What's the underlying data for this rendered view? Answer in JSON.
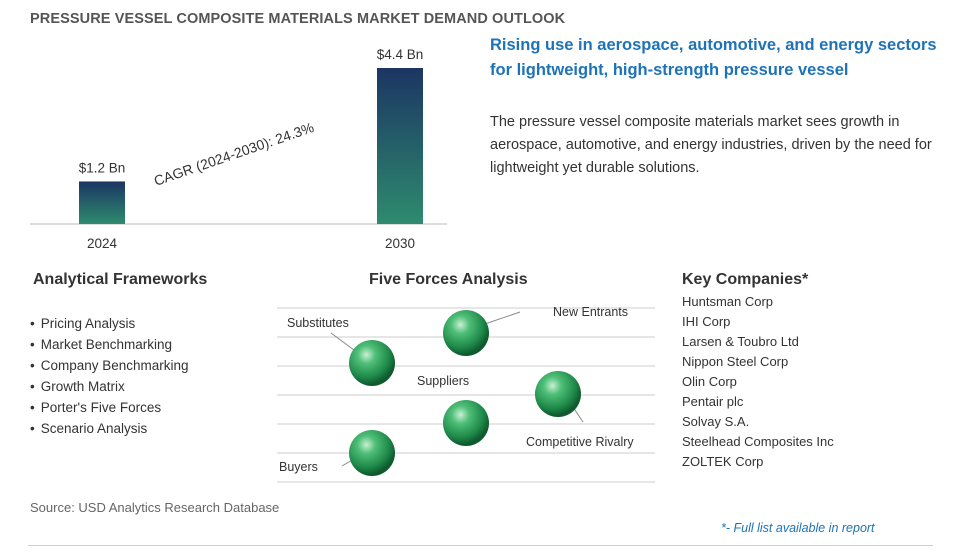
{
  "title": "PRESSURE VESSEL COMPOSITE MATERIALS MARKET DEMAND OUTLOOK",
  "chart_data": {
    "type": "bar",
    "categories": [
      "2024",
      "2030"
    ],
    "values": [
      1.2,
      4.4
    ],
    "data_labels": [
      "$1.2 Bn",
      "$4.4 Bn"
    ],
    "ylim": [
      0,
      4.4
    ],
    "annotation": "CAGR (2024-2030):  24.3%",
    "bar_colors": [
      "#2e8b6e",
      "#1c3563"
    ]
  },
  "headline": "Rising use in aerospace, automotive, and energy sectors for lightweight, high-strength pressure vessel",
  "description": "The pressure vessel composite materials market sees growth in aerospace, automotive, and energy industries, driven by the need for lightweight yet durable solutions.",
  "frameworks": {
    "title": "Analytical Frameworks",
    "items": [
      "Pricing Analysis",
      "Market Benchmarking",
      "Company Benchmarking",
      "Growth Matrix",
      "Porter's Five Forces",
      "Scenario Analysis"
    ]
  },
  "five_forces": {
    "title": "Five Forces Analysis",
    "labels": {
      "new_entrants": "New Entrants",
      "substitutes": "Substitutes",
      "suppliers": "Suppliers",
      "competitive_rivalry": "Competitive Rivalry",
      "buyers": "Buyers"
    }
  },
  "companies": {
    "title": "Key Companies*",
    "items": [
      "Huntsman Corp",
      "IHI Corp",
      "Larsen & Toubro Ltd",
      "Nippon Steel Corp",
      "Olin Corp",
      "Pentair plc",
      "Solvay S.A.",
      "Steelhead Composites Inc",
      "ZOLTEK Corp"
    ]
  },
  "source": "Source: USD Analytics Research Database",
  "footnote": "*- Full list available in report",
  "colors": {
    "accent": "#1e73b8",
    "sphere": "#2e9e5e"
  }
}
